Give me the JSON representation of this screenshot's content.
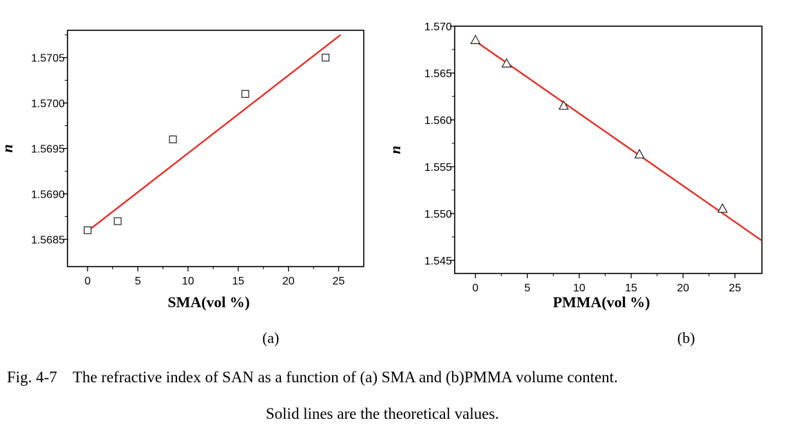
{
  "chart_data": [
    {
      "type": "scatter",
      "panel_label": "(a)",
      "xlabel": "SMA(vol %)",
      "ylabel": "n",
      "xlim": [
        -2,
        27.5
      ],
      "ylim": [
        1.5682,
        1.5708
      ],
      "xticks": [
        0,
        5,
        10,
        15,
        20,
        25
      ],
      "xtick_labels": [
        "0",
        "5",
        "10",
        "15",
        "20",
        "25"
      ],
      "yticks": [
        1.5685,
        1.569,
        1.5695,
        1.57,
        1.5705
      ],
      "ytick_labels": [
        "1.5685",
        "1.5690",
        "1.5695",
        "1.5700",
        "1.5705"
      ],
      "grid": false,
      "marker": "square",
      "series": [
        {
          "x": [
            0,
            3,
            8.5,
            15.7,
            23.7
          ],
          "y": [
            1.5686,
            1.5687,
            1.5696,
            1.5701,
            1.5705
          ]
        }
      ],
      "fit_line": {
        "x": [
          0,
          25.2
        ],
        "y": [
          1.56859,
          1.57075
        ],
        "color": "#e0302a"
      }
    },
    {
      "type": "scatter",
      "panel_label": "(b)",
      "xlabel": "PMMA(vol %)",
      "ylabel": "n",
      "xlim": [
        -2,
        27.6
      ],
      "ylim": [
        1.5436,
        1.57
      ],
      "xticks": [
        0,
        5,
        10,
        15,
        20,
        25
      ],
      "xtick_labels": [
        "0",
        "5",
        "10",
        "15",
        "20",
        "25"
      ],
      "yticks": [
        1.545,
        1.55,
        1.555,
        1.56,
        1.565,
        1.57
      ],
      "ytick_labels": [
        "1.545",
        "1.550",
        "1.555",
        "1.560",
        "1.565",
        "1.570"
      ],
      "grid": false,
      "marker": "triangle",
      "series": [
        {
          "x": [
            0,
            3,
            8.5,
            15.8,
            23.8
          ],
          "y": [
            1.5685,
            1.566,
            1.5615,
            1.5563,
            1.5505
          ]
        }
      ],
      "fit_line": {
        "x": [
          0,
          27.6
        ],
        "y": [
          1.5684,
          1.5471
        ],
        "color": "#e0302a"
      }
    }
  ],
  "caption": {
    "line1": "Fig. 4-7    The refractive index of SAN as a function of (a) SMA and (b)PMMA volume content.",
    "line2": "Solid lines are the theoretical values."
  }
}
